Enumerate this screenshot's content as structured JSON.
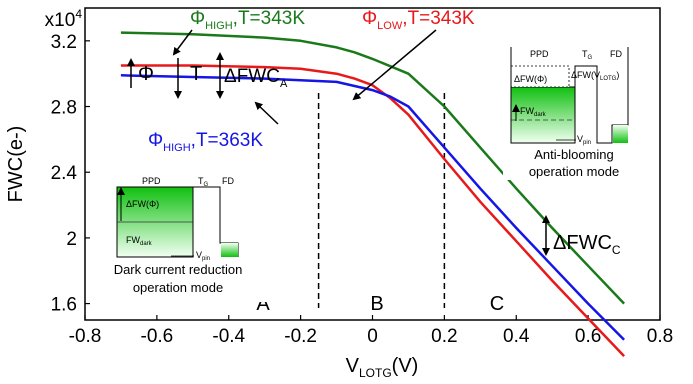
{
  "chart_data": {
    "type": "line",
    "title": "",
    "xlabel": "V",
    "xlabel_sub": "LOTG",
    "xlabel_unit": "(V)",
    "ylabel": "FWC(e-)",
    "y_multiplier": "x10",
    "y_multiplier_exp": "4",
    "xlim": [
      -0.8,
      0.8
    ],
    "ylim": [
      1.5,
      3.4
    ],
    "x_ticks": [
      -0.8,
      -0.6,
      -0.4,
      -0.2,
      0,
      0.2,
      0.4,
      0.6,
      0.8
    ],
    "x_tick_labels": [
      "-0.8",
      "-0.6",
      "-0.4",
      "-0.2",
      "0",
      "0.2",
      "0.4",
      "0.6",
      "0.8"
    ],
    "y_ticks": [
      1.6,
      2.0,
      2.4,
      2.8,
      3.2
    ],
    "y_tick_labels": [
      "1.6",
      "2",
      "2.4",
      "2.8",
      "3.2"
    ],
    "grid": false,
    "series": [
      {
        "name": "ΦHIGH,T=343K",
        "color": "#1a7a1a",
        "x": [
          -0.7,
          -0.5,
          -0.3,
          -0.2,
          -0.1,
          -0.05,
          0,
          0.1,
          0.2,
          0.3,
          0.4,
          0.5,
          0.6,
          0.7
        ],
        "y": [
          3.25,
          3.24,
          3.22,
          3.2,
          3.16,
          3.13,
          3.09,
          3.0,
          2.8,
          2.55,
          2.3,
          2.06,
          1.83,
          1.6
        ]
      },
      {
        "name": "ΦLOW,T=343K",
        "color": "#e8191b",
        "x": [
          -0.7,
          -0.5,
          -0.3,
          -0.2,
          -0.1,
          -0.05,
          0,
          0.05,
          0.1,
          0.2,
          0.3,
          0.4,
          0.5,
          0.6,
          0.7
        ],
        "y": [
          3.05,
          3.05,
          3.04,
          3.03,
          3.0,
          2.97,
          2.93,
          2.85,
          2.75,
          2.48,
          2.22,
          1.98,
          1.74,
          1.51,
          1.28
        ]
      },
      {
        "name": "ΦHIGH,T=363K",
        "color": "#1515e6",
        "x": [
          -0.7,
          -0.5,
          -0.3,
          -0.2,
          -0.1,
          0,
          0.05,
          0.1,
          0.2,
          0.3,
          0.4,
          0.5,
          0.6,
          0.7
        ],
        "y": [
          2.99,
          2.98,
          2.97,
          2.96,
          2.95,
          2.9,
          2.86,
          2.8,
          2.55,
          2.3,
          2.06,
          1.83,
          1.6,
          1.38
        ]
      }
    ],
    "vlines": [
      -0.15,
      0.2
    ],
    "regions": [
      {
        "label": "A",
        "x": -0.45
      },
      {
        "label": "B",
        "x": 0.02
      },
      {
        "label": "C",
        "x": 0.45
      }
    ],
    "series_labels": [
      {
        "main": "Φ",
        "sub": "HIGH",
        "rest": ",T=343K",
        "color": "#1a7a1a"
      },
      {
        "main": "Φ",
        "sub": "LOW",
        "rest": ",T=343K",
        "color": "#e8191b"
      },
      {
        "main": "Φ",
        "sub": "HIGH",
        "rest": ",T=363K",
        "color": "#1515e6"
      }
    ],
    "annotations": {
      "phi": "Φ",
      "t": "T",
      "dfwc_a": "ΔFWC",
      "dfwc_a_sub": "A",
      "dfwc_c": "ΔFWC",
      "dfwc_c_sub": "C"
    },
    "insets": {
      "dark": {
        "ppd": "PPD",
        "tg": "T",
        "tg_sub": "G",
        "fd": "FD",
        "dfw": "ΔFW(Φ)",
        "fw": "FW",
        "fw_sub": "dark",
        "vpin": "V",
        "vpin_sub": "pin",
        "caption_line1": "Dark current reduction",
        "caption_line2": "operation mode"
      },
      "anti": {
        "ppd": "PPD",
        "tg": "T",
        "tg_sub": "G",
        "fd": "FD",
        "dfw": "ΔFW(Φ)",
        "dfw_lotg": "ΔFW(V",
        "dfw_lotg_sub": "LOTG",
        "dfw_lotg_end": ")",
        "fw": "FW",
        "fw_sub": "dark",
        "vpin": "V",
        "vpin_sub": "pin",
        "caption_line1": "Anti-blooming",
        "caption_line2": "operation mode"
      }
    }
  }
}
